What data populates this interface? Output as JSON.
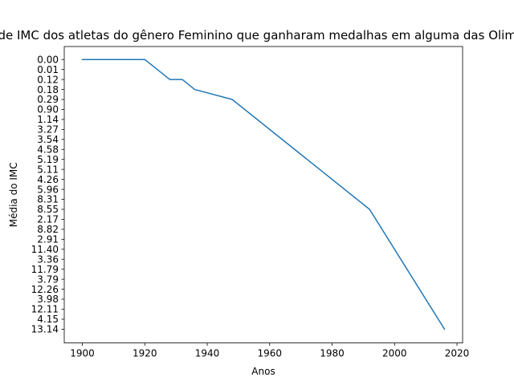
{
  "chart_data": {
    "type": "line",
    "title": "Média de IMC dos atletas do gênero Feminino que ganharam medalhas em alguma das Olimpíadas",
    "xlabel": "Anos",
    "ylabel": "Média do IMC",
    "xlim": [
      1900,
      2016
    ],
    "x_ticks": [
      1900,
      1920,
      1940,
      1960,
      1980,
      2000,
      2020
    ],
    "y_categories": [
      "0.00",
      "0.01",
      "0.12",
      "0.18",
      "0.29",
      "0.90",
      "1.14",
      "3.27",
      "3.54",
      "4.58",
      "5.19",
      "5.11",
      "4.26",
      "5.96",
      "8.31",
      "8.55",
      "2.17",
      "8.82",
      "2.91",
      "11.40",
      "3.36",
      "11.79",
      "3.79",
      "12.26",
      "3.98",
      "12.11",
      "4.15",
      "13.14"
    ],
    "y_inverted": true,
    "grid": false,
    "series": [
      {
        "color": "#1f77b4",
        "points": [
          {
            "x": 1900,
            "y": "0.00"
          },
          {
            "x": 1920,
            "y": "0.00"
          },
          {
            "x": 1928,
            "y": "0.12"
          },
          {
            "x": 1932,
            "y": "0.12"
          },
          {
            "x": 1936,
            "y": "0.18"
          },
          {
            "x": 1948,
            "y": "0.29"
          },
          {
            "x": 1992,
            "y": "8.55"
          },
          {
            "x": 2016,
            "y": "13.14"
          }
        ]
      }
    ]
  }
}
